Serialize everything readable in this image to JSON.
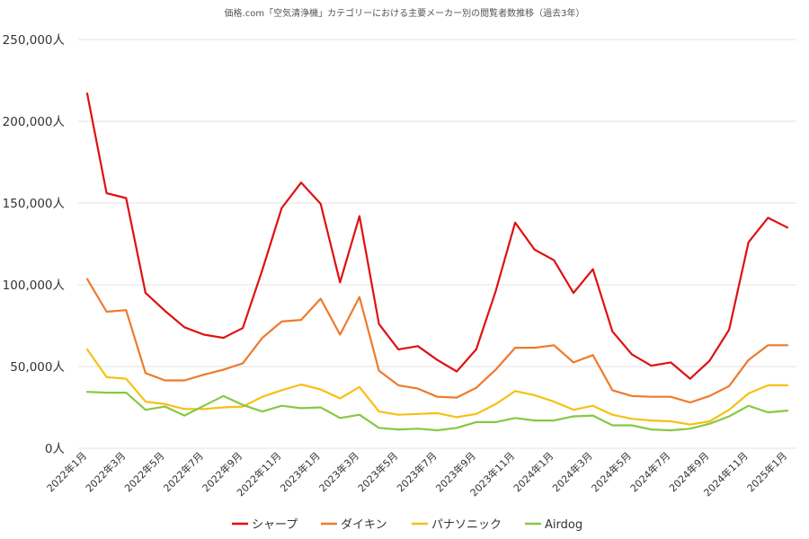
{
  "chart_data": {
    "type": "line",
    "title": "価格.com「空気清浄機」カテゴリーにおける主要メーカー別の閲覧者数推移（過去3年）",
    "xlabel": "",
    "ylabel": "",
    "ylim": [
      0,
      250000
    ],
    "yticks": [
      0,
      50000,
      100000,
      150000,
      200000,
      250000
    ],
    "ytick_labels": [
      "0人",
      "50,000人",
      "100,000人",
      "150,000人",
      "200,000人",
      "250,000人"
    ],
    "x": [
      "2022年1月",
      "2022年2月",
      "2022年3月",
      "2022年4月",
      "2022年5月",
      "2022年6月",
      "2022年7月",
      "2022年8月",
      "2022年9月",
      "2022年10月",
      "2022年11月",
      "2022年12月",
      "2023年1月",
      "2023年2月",
      "2023年3月",
      "2023年4月",
      "2023年5月",
      "2023年6月",
      "2023年7月",
      "2023年8月",
      "2023年9月",
      "2023年10月",
      "2023年11月",
      "2023年12月",
      "2024年1月",
      "2024年2月",
      "2024年3月",
      "2024年4月",
      "2024年5月",
      "2024年6月",
      "2024年7月",
      "2024年8月",
      "2024年9月",
      "2024年10月",
      "2024年11月",
      "2024年12月",
      "2025年1月"
    ],
    "xtick_labels": [
      "2022年1月",
      "2022年3月",
      "2022年5月",
      "2022年7月",
      "2022年9月",
      "2022年11月",
      "2023年1月",
      "2023年3月",
      "2023年5月",
      "2023年7月",
      "2023年9月",
      "2023年11月",
      "2024年1月",
      "2024年3月",
      "2024年5月",
      "2024年7月",
      "2024年9月",
      "2024年11月",
      "2025年1月"
    ],
    "grid": true,
    "legend": "bottom",
    "series": [
      {
        "name": "シャープ",
        "color": "#e01010",
        "values": [
          217000,
          156000,
          153000,
          95000,
          84000,
          74000,
          69500,
          67500,
          73500,
          109000,
          147000,
          162500,
          149500,
          101500,
          142000,
          76000,
          60500,
          62500,
          54000,
          47000,
          60500,
          96000,
          138000,
          121500,
          115000,
          95000,
          109500,
          71500,
          57500,
          50500,
          52500,
          42500,
          53500,
          72500,
          126000,
          141000,
          135000
        ]
      },
      {
        "name": "ダイキン",
        "color": "#ee7a2c",
        "values": [
          103500,
          83500,
          84500,
          46000,
          41500,
          41500,
          45000,
          48000,
          52000,
          67500,
          77500,
          78500,
          91500,
          69500,
          92500,
          47500,
          38500,
          36500,
          31500,
          31000,
          37000,
          48000,
          61500,
          61500,
          63000,
          52500,
          57000,
          35500,
          32000,
          31500,
          31500,
          28000,
          32000,
          38000,
          54000,
          63000,
          63000
        ]
      },
      {
        "name": "パナソニック",
        "color": "#f7c012",
        "values": [
          60500,
          43500,
          42500,
          28500,
          27000,
          24000,
          24000,
          25000,
          25500,
          31500,
          35500,
          39000,
          36000,
          30500,
          37500,
          22500,
          20500,
          21000,
          21500,
          19000,
          21000,
          27000,
          35000,
          32500,
          28500,
          23500,
          26000,
          20500,
          18000,
          17000,
          16500,
          14500,
          16500,
          23500,
          33500,
          38500,
          38500
        ]
      },
      {
        "name": "Airdog",
        "color": "#88c844",
        "values": [
          34500,
          34000,
          34000,
          23500,
          25500,
          20000,
          26000,
          32000,
          26500,
          22500,
          26000,
          24500,
          25000,
          18500,
          20500,
          12500,
          11500,
          12000,
          11000,
          12500,
          16000,
          16000,
          18500,
          17000,
          17000,
          19500,
          20000,
          14000,
          14000,
          11500,
          11000,
          12000,
          15000,
          19500,
          26000,
          22000,
          23000
        ]
      }
    ]
  }
}
